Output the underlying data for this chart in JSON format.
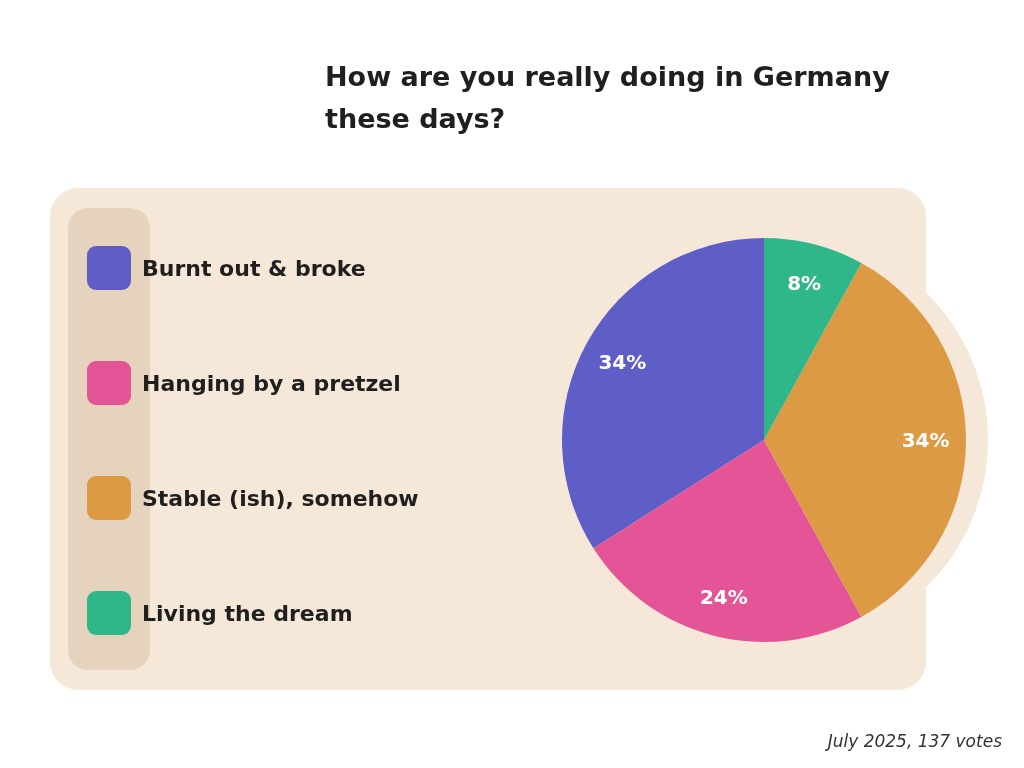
{
  "chart_data": {
    "type": "pie",
    "title": "How are you really doing in Germany these days?",
    "categories": [
      "Burnt out & broke",
      "Hanging by a pretzel",
      "Stable (ish), somehow",
      "Living the dream"
    ],
    "values": [
      34,
      24,
      34,
      8
    ],
    "colors": [
      "#5f5dc6",
      "#e45597",
      "#dc9a45",
      "#2fb78a"
    ],
    "value_labels": [
      "34%",
      "24%",
      "34%",
      "8%"
    ],
    "legend": "left",
    "annotations": [
      "July 2025, 137 votes"
    ]
  }
}
